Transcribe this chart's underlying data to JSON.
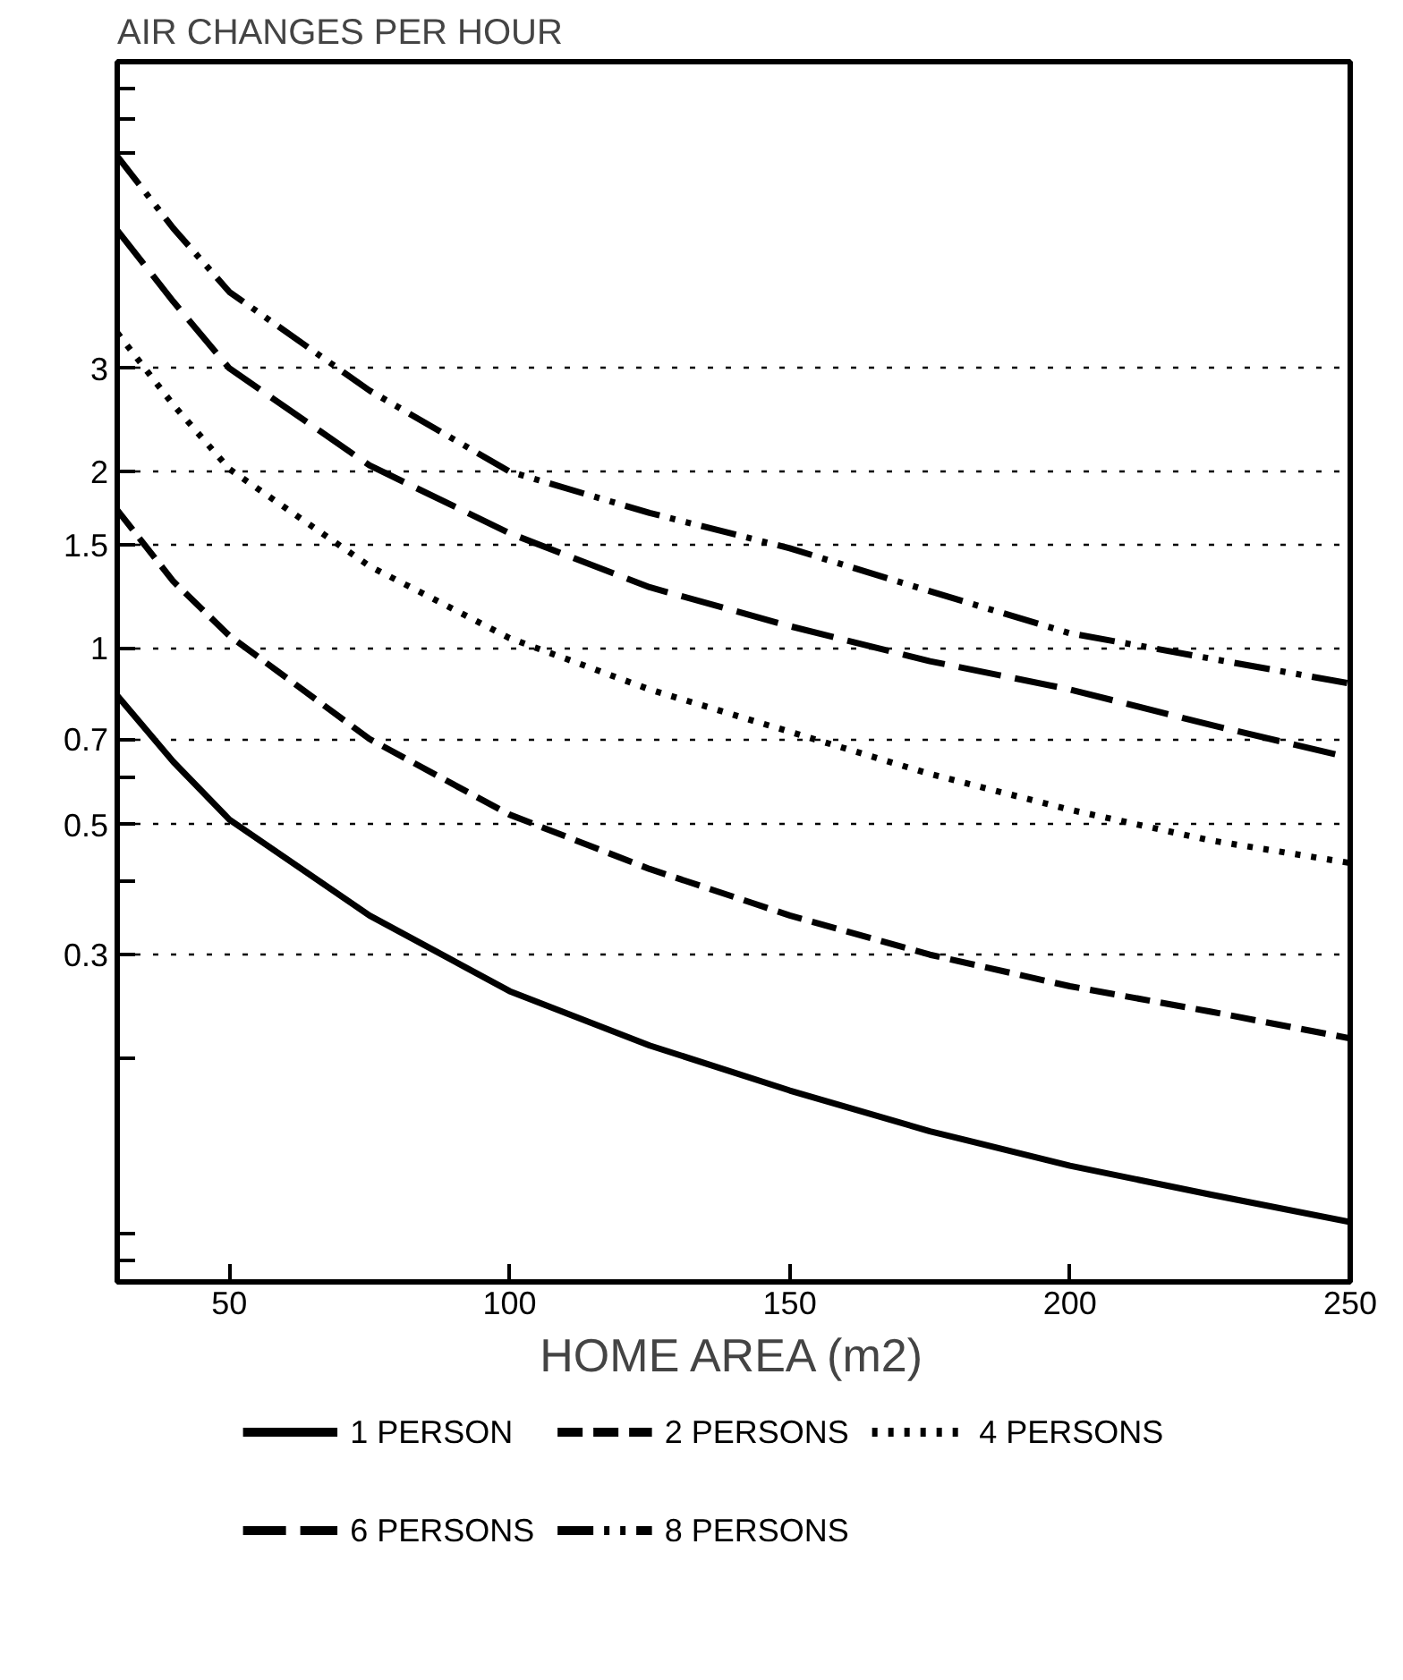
{
  "chart_data": {
    "type": "line",
    "title": "AIR CHANGES PER HOUR",
    "xlabel": "HOME AREA (m2)",
    "x": [
      30,
      40,
      50,
      75,
      100,
      125,
      150,
      175,
      200,
      225,
      250
    ],
    "series": [
      {
        "name": "1 PERSON",
        "color": "#000000",
        "line_style": "solid",
        "values": [
          0.83,
          0.64,
          0.51,
          0.35,
          0.26,
          0.21,
          0.176,
          0.15,
          0.131,
          0.117,
          0.105
        ]
      },
      {
        "name": "2 PERSONS",
        "color": "#000000",
        "line_style": "dashed",
        "values": [
          1.72,
          1.3,
          1.05,
          0.7,
          0.52,
          0.42,
          0.35,
          0.3,
          0.265,
          0.24,
          0.216
        ]
      },
      {
        "name": "4 PERSONS",
        "color": "#000000",
        "line_style": "dotted",
        "values": [
          3.45,
          2.6,
          2.02,
          1.38,
          1.04,
          0.85,
          0.72,
          0.61,
          0.53,
          0.47,
          0.43
        ]
      },
      {
        "name": "6 PERSONS",
        "color": "#000000",
        "line_style": "longdash",
        "values": [
          5.16,
          3.9,
          3.0,
          2.05,
          1.57,
          1.27,
          1.09,
          0.95,
          0.85,
          0.74,
          0.65
        ]
      },
      {
        "name": "8 PERSONS",
        "color": "#000000",
        "line_style": "dashdot",
        "values": [
          6.9,
          5.2,
          4.05,
          2.75,
          2.0,
          1.7,
          1.48,
          1.25,
          1.06,
          0.96,
          0.87
        ]
      }
    ],
    "log": "y",
    "xlim": [
      30,
      250
    ],
    "ylim": [
      0.083,
      10
    ],
    "xticks": [
      50,
      100,
      150,
      200,
      250
    ],
    "yticks": [
      {
        "value": 0.09,
        "label": null
      },
      {
        "value": 0.1,
        "label": null
      },
      {
        "value": 0.2,
        "label": null
      },
      0.3,
      {
        "value": 0.4,
        "label": null
      },
      0.5,
      {
        "value": 0.6,
        "label": null
      },
      0.7,
      1,
      1.5,
      2,
      3,
      {
        "value": 7,
        "label": null
      },
      {
        "value": 8,
        "label": null
      },
      {
        "value": 9,
        "label": null
      }
    ],
    "grid": "y",
    "legend": "bottom"
  }
}
